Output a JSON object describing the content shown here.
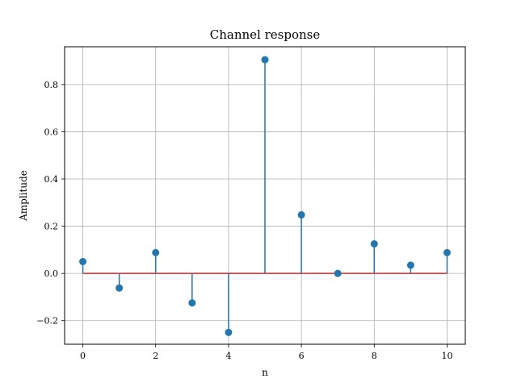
{
  "chart_data": {
    "type": "stem",
    "title": "Channel response",
    "xlabel": "n",
    "ylabel": "Amplitude",
    "x": [
      0,
      1,
      2,
      3,
      4,
      5,
      6,
      7,
      8,
      9,
      10
    ],
    "values": [
      0.05,
      -0.062,
      0.088,
      -0.125,
      -0.25,
      0.905,
      0.248,
      0.0,
      0.125,
      0.035,
      0.088
    ],
    "xlim": [
      -0.5,
      10.5
    ],
    "ylim": [
      -0.3,
      0.96
    ],
    "xticks": [
      0,
      2,
      4,
      6,
      8,
      10
    ],
    "xtick_labels": [
      "0",
      "2",
      "4",
      "6",
      "8",
      "10"
    ],
    "yticks": [
      -0.2,
      0.0,
      0.2,
      0.4,
      0.6,
      0.8
    ],
    "ytick_labels": [
      "−0.2",
      "0.0",
      "0.2",
      "0.4",
      "0.6",
      "0.8"
    ],
    "grid": true,
    "colors": {
      "stem": "#1f77b4",
      "marker": "#1f77b4",
      "baseline": "#d62728",
      "grid": "#b0b0b0",
      "axes": "#000000"
    }
  }
}
